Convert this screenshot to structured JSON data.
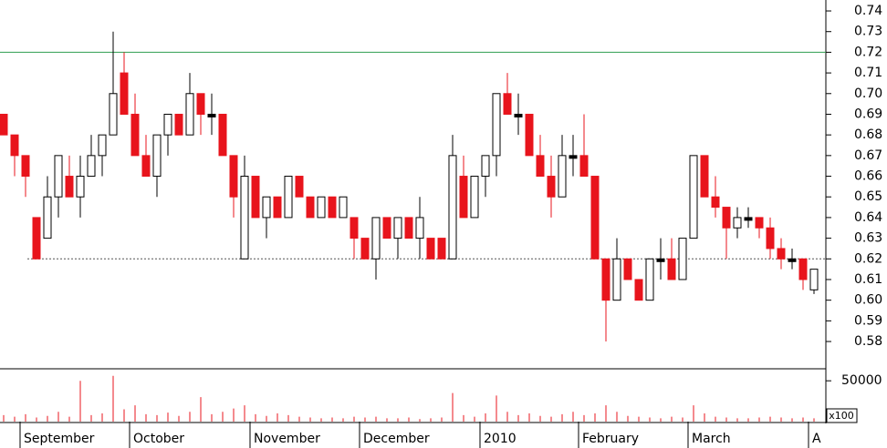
{
  "chart_data": {
    "type": "candlestick",
    "categories": [
      null,
      null,
      "September",
      null,
      null,
      null,
      null,
      null,
      null,
      null,
      null,
      null,
      "October",
      null,
      null,
      null,
      null,
      null,
      null,
      null,
      null,
      null,
      null,
      "November",
      null,
      null,
      null,
      null,
      null,
      null,
      null,
      null,
      null,
      "December",
      null,
      null,
      null,
      null,
      null,
      null,
      null,
      null,
      null,
      null,
      "2010",
      null,
      null,
      null,
      null,
      null,
      null,
      null,
      null,
      "February",
      null,
      null,
      null,
      null,
      null,
      null,
      null,
      null,
      null,
      "March",
      null,
      null,
      null,
      null,
      null,
      null,
      null,
      null,
      null,
      null,
      "A"
    ],
    "open": [
      0.69,
      0.68,
      0.67,
      0.64,
      0.63,
      0.65,
      0.66,
      0.65,
      0.66,
      0.67,
      0.68,
      0.71,
      0.69,
      0.67,
      0.66,
      0.68,
      0.69,
      0.68,
      0.7,
      0.69,
      0.69,
      0.67,
      0.62,
      0.66,
      0.64,
      0.65,
      0.64,
      0.66,
      0.65,
      0.64,
      0.65,
      0.64,
      0.64,
      0.63,
      0.62,
      0.64,
      0.63,
      0.64,
      0.63,
      0.63,
      0.63,
      0.62,
      0.66,
      0.64,
      0.66,
      0.67,
      0.7,
      0.69,
      0.69,
      0.67,
      0.66,
      0.65,
      0.67,
      0.67,
      0.66,
      0.62,
      0.6,
      0.62,
      0.61,
      0.6,
      0.62,
      0.62,
      0.61,
      0.63,
      0.67,
      0.65,
      0.645,
      0.635,
      0.64,
      0.64,
      0.635,
      0.625,
      0.62,
      0.62,
      0.605
    ],
    "high": [
      0.69,
      0.68,
      0.67,
      0.64,
      0.66,
      0.67,
      0.67,
      0.67,
      0.68,
      0.68,
      0.73,
      0.72,
      0.7,
      0.68,
      0.68,
      0.69,
      0.69,
      0.71,
      0.7,
      0.7,
      0.69,
      0.67,
      0.67,
      0.66,
      0.65,
      0.65,
      0.66,
      0.66,
      0.65,
      0.65,
      0.65,
      0.65,
      0.64,
      0.63,
      0.64,
      0.64,
      0.64,
      0.64,
      0.65,
      0.63,
      0.63,
      0.68,
      0.67,
      0.66,
      0.67,
      0.7,
      0.71,
      0.7,
      0.69,
      0.68,
      0.67,
      0.68,
      0.68,
      0.69,
      0.66,
      0.62,
      0.63,
      0.62,
      0.61,
      0.62,
      0.63,
      0.63,
      0.63,
      0.67,
      0.67,
      0.66,
      0.645,
      0.645,
      0.645,
      0.64,
      0.64,
      0.63,
      0.625,
      0.62,
      0.615
    ],
    "low": [
      0.68,
      0.66,
      0.65,
      0.62,
      0.63,
      0.64,
      0.65,
      0.64,
      0.66,
      0.66,
      0.68,
      0.69,
      0.67,
      0.66,
      0.65,
      0.67,
      0.68,
      0.68,
      0.68,
      0.68,
      0.67,
      0.64,
      0.62,
      0.64,
      0.63,
      0.64,
      0.64,
      0.65,
      0.64,
      0.64,
      0.64,
      0.64,
      0.62,
      0.62,
      0.61,
      0.63,
      0.62,
      0.63,
      0.62,
      0.62,
      0.62,
      0.62,
      0.64,
      0.64,
      0.65,
      0.66,
      0.69,
      0.68,
      0.67,
      0.66,
      0.64,
      0.65,
      0.66,
      0.66,
      0.62,
      0.58,
      0.6,
      0.61,
      0.6,
      0.6,
      0.61,
      0.61,
      0.61,
      0.63,
      0.65,
      0.64,
      0.62,
      0.63,
      0.635,
      0.63,
      0.62,
      0.615,
      0.615,
      0.605,
      0.603
    ],
    "close": [
      0.68,
      0.67,
      0.66,
      0.62,
      0.65,
      0.67,
      0.65,
      0.66,
      0.67,
      0.68,
      0.7,
      0.69,
      0.67,
      0.66,
      0.68,
      0.69,
      0.68,
      0.7,
      0.69,
      0.69,
      0.67,
      0.65,
      0.66,
      0.64,
      0.65,
      0.64,
      0.66,
      0.65,
      0.64,
      0.65,
      0.64,
      0.65,
      0.63,
      0.62,
      0.64,
      0.63,
      0.64,
      0.63,
      0.64,
      0.62,
      0.62,
      0.67,
      0.64,
      0.66,
      0.67,
      0.7,
      0.69,
      0.69,
      0.67,
      0.66,
      0.65,
      0.67,
      0.67,
      0.66,
      0.62,
      0.6,
      0.62,
      0.61,
      0.6,
      0.62,
      0.62,
      0.61,
      0.63,
      0.67,
      0.65,
      0.645,
      0.635,
      0.64,
      0.64,
      0.635,
      0.625,
      0.62,
      0.62,
      0.61,
      0.615
    ],
    "volume": [
      8000,
      6000,
      9000,
      5000,
      7000,
      12000,
      6000,
      50000,
      8000,
      10000,
      56000,
      15000,
      20000,
      9000,
      8000,
      11000,
      7000,
      12000,
      30000,
      9000,
      12000,
      16000,
      20000,
      9000,
      7000,
      10000,
      8000,
      6000,
      5000,
      4000,
      5000,
      4000,
      6000,
      5000,
      6000,
      4000,
      4000,
      5000,
      3000,
      4000,
      5000,
      35000,
      8000,
      6000,
      10000,
      32000,
      12000,
      8000,
      10000,
      7000,
      6000,
      9000,
      12000,
      8000,
      10000,
      20000,
      12000,
      7000,
      6000,
      5000,
      4000,
      6000,
      5000,
      20000,
      10000,
      6000,
      5000,
      4000,
      4000,
      5000,
      6000,
      5000,
      4000,
      5000,
      4000
    ],
    "up_color": "#ffffff",
    "down_color": "#e8141c",
    "flat_color": "#000000",
    "volume_color": "#e8141c",
    "ylim": [
      0.5668,
      0.7453
    ],
    "yticks": [
      0.58,
      0.59,
      {
        "value": 0.6,
        "label": "0.60"
      },
      0.61,
      0.62,
      0.63,
      0.64,
      0.65,
      0.66,
      0.67,
      0.68,
      0.69,
      {
        "value": 0.7,
        "label": "0.70"
      },
      0.71,
      0.72,
      0.73,
      0.74
    ],
    "vlim": [
      0,
      63600
    ],
    "vticks": [
      50000
    ],
    "volume_unit_label": "x100",
    "reference_lines": [
      {
        "value": 0.72,
        "color": "#2e9e4f",
        "style": "solid"
      },
      {
        "value": 0.62,
        "color": "#555555",
        "style": "dashed"
      }
    ]
  }
}
